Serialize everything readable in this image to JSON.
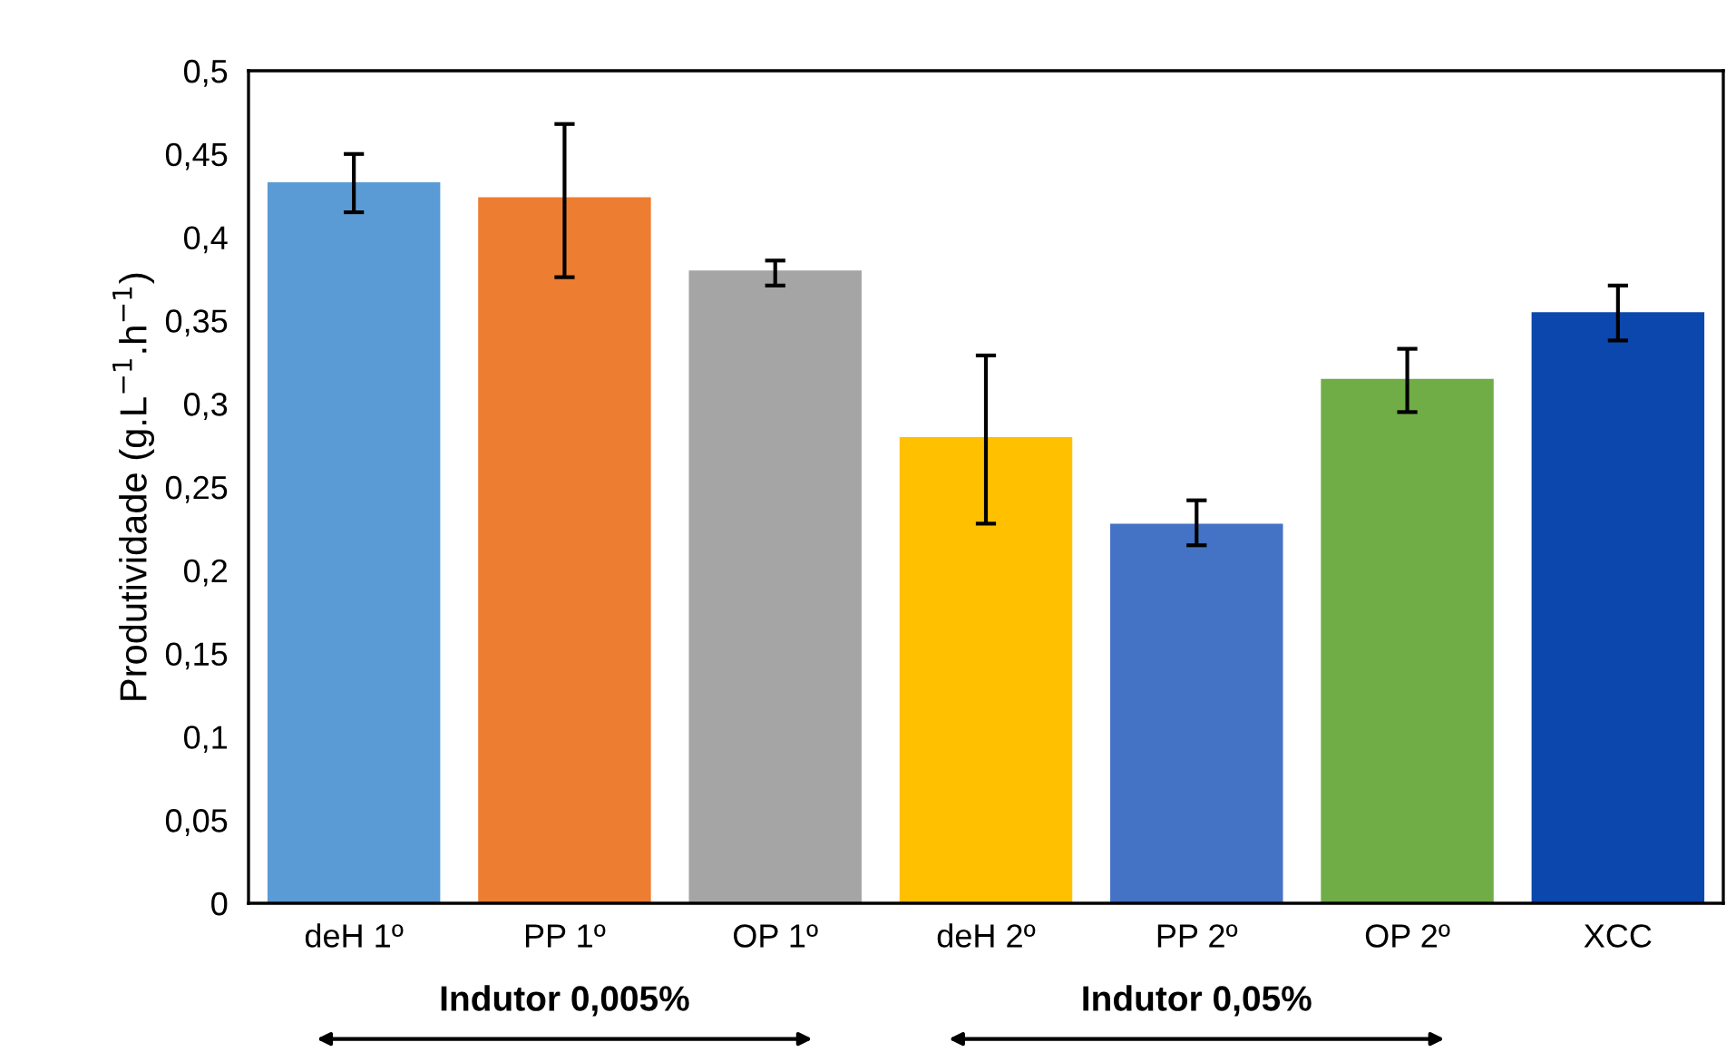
{
  "chart_data": {
    "type": "bar",
    "ylabel": "Produtividade (g.L$^{−1}$.h$^{−1}$)",
    "categories": [
      "deH 1º",
      "PP 1º",
      "OP 1º",
      "deH 2º",
      "PP 2º",
      "OP 2º",
      "XCC"
    ],
    "values": [
      0.433,
      0.424,
      0.38,
      0.28,
      0.228,
      0.315,
      0.355
    ],
    "colors": [
      "#5b9bd5",
      "#ed7d31",
      "#a5a5a5",
      "#ffc000",
      "#4472c4",
      "#70ad47",
      "#0b47ad"
    ],
    "errors": [
      [
        0.415,
        0.45
      ],
      [
        0.376,
        0.468
      ],
      [
        0.371,
        0.386
      ],
      [
        0.228,
        0.329
      ],
      [
        0.215,
        0.242
      ],
      [
        0.295,
        0.333
      ],
      [
        0.338,
        0.371
      ]
    ],
    "ylim": [
      0,
      0.5
    ],
    "yticks": [
      0,
      {
        "value": 0.05,
        "label": "0,05"
      },
      {
        "value": 0.1,
        "label": "0,1"
      },
      {
        "value": 0.15,
        "label": "0,15"
      },
      {
        "value": 0.2,
        "label": "0,2"
      },
      {
        "value": 0.25,
        "label": "0,25"
      },
      {
        "value": 0.3,
        "label": "0,3"
      },
      {
        "value": 0.35,
        "label": "0,35"
      },
      {
        "value": 0.4,
        "label": "0,4"
      },
      {
        "value": 0.45,
        "label": "0,45"
      },
      {
        "value": 0.5,
        "label": "0,5"
      }
    ],
    "grid": false,
    "annotations": [
      "Indutor 0,005%",
      "Indutor 0,05%"
    ]
  }
}
